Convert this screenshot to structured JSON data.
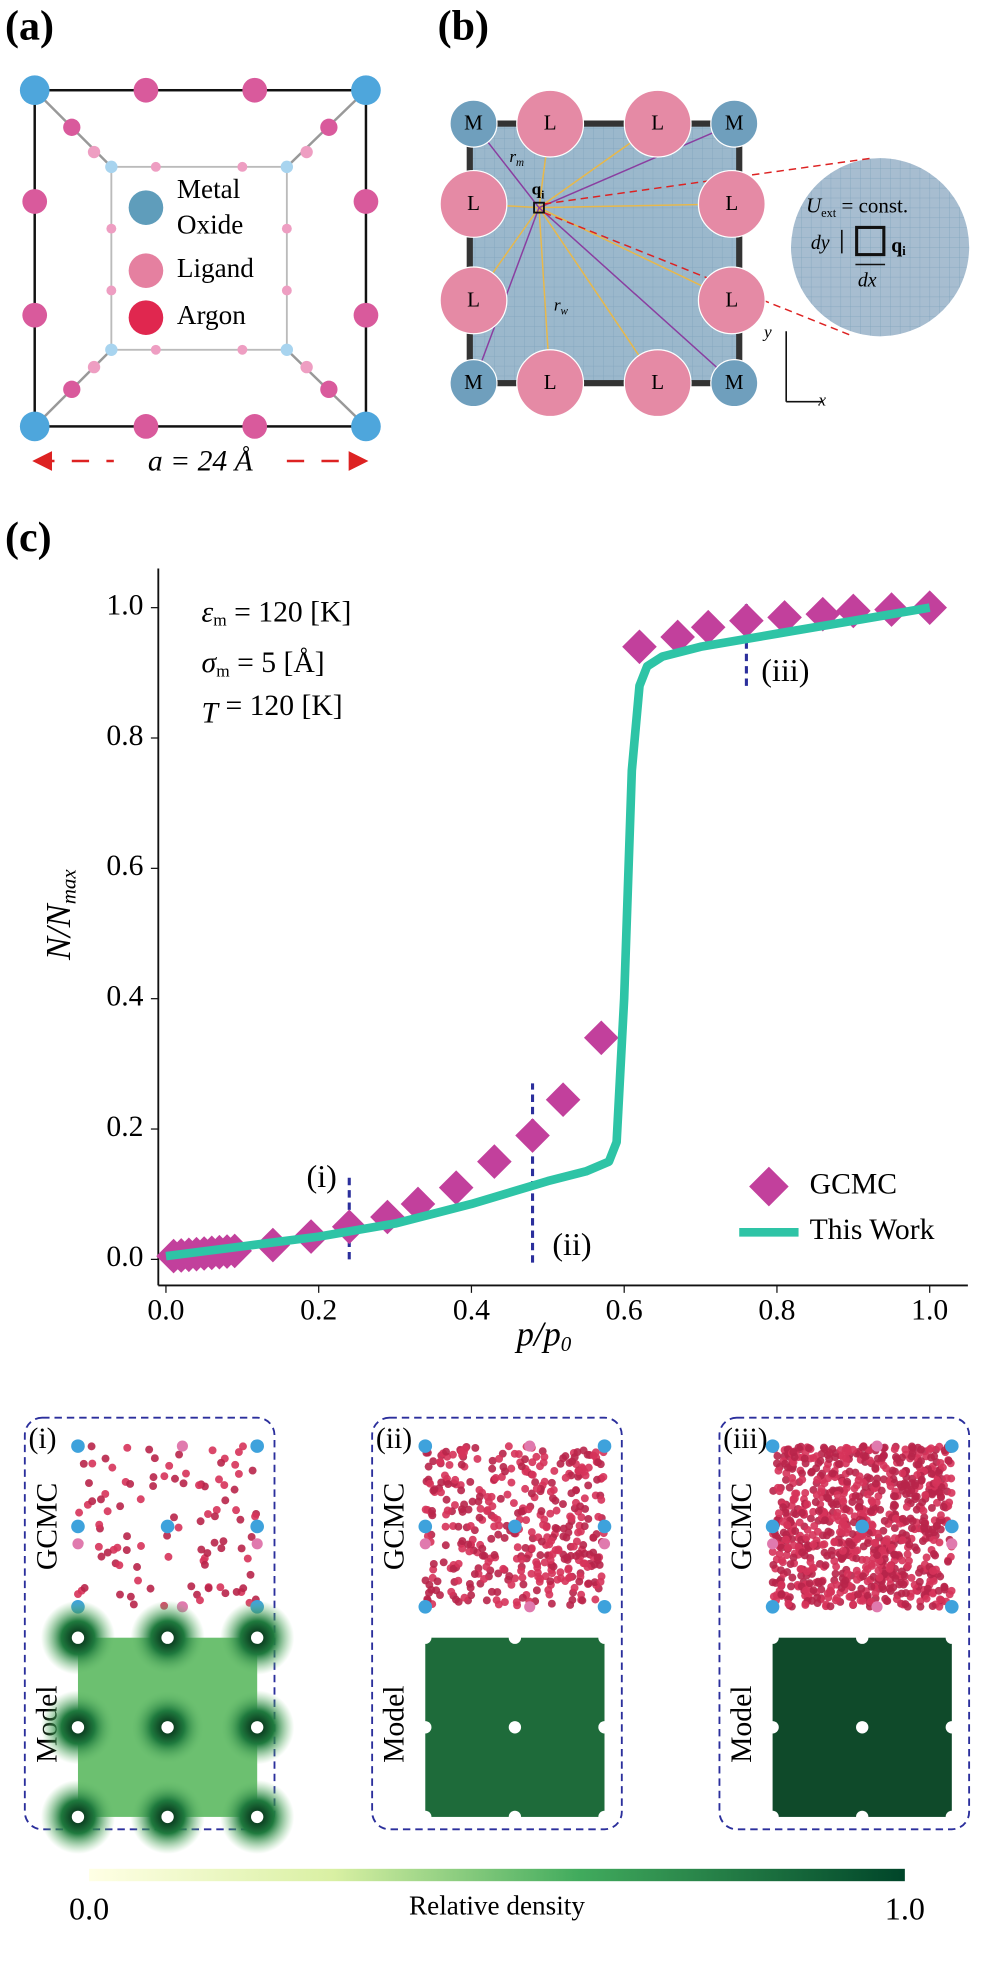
{
  "panel_a": {
    "label": "(a)",
    "legend": [
      [
        "Metal",
        "Oxide"
      ],
      [
        "Ligand"
      ],
      [
        "Argon"
      ]
    ],
    "lattice": "a = 24 Å"
  },
  "panel_b": {
    "label": "(b)",
    "nodes": [
      "M",
      "L",
      "L",
      "M",
      "L",
      "L",
      "L",
      "L",
      "M",
      "L",
      "L",
      "M"
    ],
    "r_m": {
      "main": "r",
      "sub": "m"
    },
    "r_w": {
      "main": "r",
      "sub": "w"
    },
    "q": {
      "main": "q",
      "sub": "i"
    },
    "uext": {
      "main": "U",
      "sub": "ext",
      "rest": " = const."
    },
    "dy": "dy",
    "dx": "dx",
    "axis_x": "x",
    "axis_y": "y"
  },
  "chart_data": {
    "type": "scatter",
    "panel_label": "(c)",
    "xlabel": {
      "main": "p/p",
      "sub": "0"
    },
    "ylabel": {
      "main": "N/N",
      "sub": "max"
    },
    "params": [
      {
        "sym": "ε",
        "sub": "m",
        "rest": " = 120 [K]"
      },
      {
        "sym": "σ",
        "sub": "m",
        "rest": " = 5 [Å]"
      },
      {
        "sym": "T",
        "sub": "",
        "rest": " = 120 [K]"
      }
    ],
    "xlim": [
      -0.01,
      1.05
    ],
    "ylim": [
      -0.04,
      1.06
    ],
    "xticks": [
      {
        "value": 0,
        "label": "0.0"
      },
      {
        "value": 0.2,
        "label": "0.2"
      },
      {
        "value": 0.4,
        "label": "0.4"
      },
      {
        "value": 0.6,
        "label": "0.6"
      },
      {
        "value": 0.8,
        "label": "0.8"
      },
      {
        "value": 1,
        "label": "1.0"
      }
    ],
    "yticks": [
      {
        "value": 0,
        "label": "0.0"
      },
      {
        "value": 0.2,
        "label": "0.2"
      },
      {
        "value": 0.4,
        "label": "0.4"
      },
      {
        "value": 0.6,
        "label": "0.6"
      },
      {
        "value": 0.8,
        "label": "0.8"
      },
      {
        "value": 1,
        "label": "1.0"
      }
    ],
    "series": [
      {
        "name": "GCMC",
        "type": "scatter",
        "color": "#c2409c",
        "x": [
          0.01,
          0.02,
          0.03,
          0.04,
          0.05,
          0.06,
          0.07,
          0.08,
          0.09,
          0.14,
          0.19,
          0.24,
          0.29,
          0.33,
          0.38,
          0.43,
          0.48,
          0.52,
          0.57,
          0.62,
          0.67,
          0.71,
          0.76,
          0.81,
          0.86,
          0.9,
          0.95,
          1.0
        ],
        "values": [
          0.005,
          0.006,
          0.007,
          0.008,
          0.009,
          0.01,
          0.011,
          0.012,
          0.013,
          0.022,
          0.035,
          0.05,
          0.065,
          0.085,
          0.11,
          0.15,
          0.19,
          0.245,
          0.34,
          0.94,
          0.955,
          0.97,
          0.98,
          0.985,
          0.99,
          0.995,
          0.997,
          1.0
        ]
      },
      {
        "name": "This Work",
        "type": "line",
        "color": "#2ec4a6",
        "x": [
          0.0,
          0.1,
          0.2,
          0.3,
          0.4,
          0.5,
          0.55,
          0.58,
          0.59,
          0.6,
          0.61,
          0.62,
          0.63,
          0.65,
          0.7,
          0.8,
          0.9,
          1.0
        ],
        "values": [
          0.005,
          0.02,
          0.035,
          0.055,
          0.085,
          0.12,
          0.135,
          0.15,
          0.18,
          0.4,
          0.75,
          0.88,
          0.91,
          0.925,
          0.94,
          0.96,
          0.98,
          1.0
        ]
      }
    ],
    "annotations": [
      {
        "text": "(i)",
        "x": 0.24,
        "y": [
          0.0,
          0.13
        ]
      },
      {
        "text": "(ii)",
        "x": 0.48,
        "y": [
          -0.005,
          0.27
        ]
      },
      {
        "text": "(iii)",
        "x": 0.76,
        "y": [
          0.88,
          1.01
        ]
      }
    ]
  },
  "snapshots": {
    "panels": [
      "(i)",
      "(ii)",
      "(iii)"
    ],
    "rows": [
      "GCMC",
      "Model"
    ]
  },
  "colorbar": {
    "label": "Relative density",
    "ticks": [
      {
        "value": 0,
        "label": "0.0"
      },
      {
        "value": 1,
        "label": "1.0"
      }
    ]
  }
}
